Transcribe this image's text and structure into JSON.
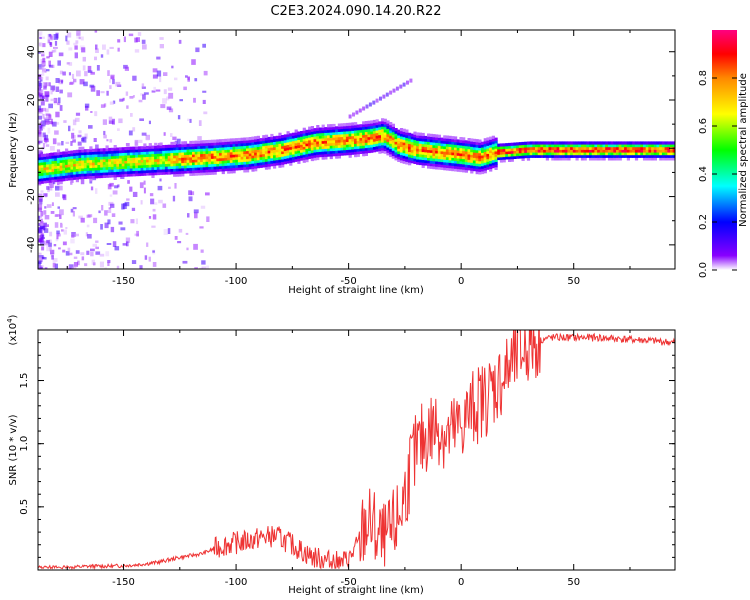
{
  "title": "C2E3.2024.090.14.20.R22",
  "chart_data": [
    {
      "type": "heatmap",
      "title": "C2E3.2024.090.14.20.R22",
      "xlabel": "Height of straight line (km)",
      "ylabel": "Frequency (Hz)",
      "xlim": [
        -188,
        95
      ],
      "ylim": [
        -50,
        49
      ],
      "xticks": [
        -150,
        -100,
        -50,
        0,
        50
      ],
      "xtick_labels": [
        "-150",
        "-100",
        "-50",
        "0",
        "50"
      ],
      "yticks": [
        -40,
        -20,
        0,
        20,
        40
      ],
      "ytick_labels": [
        "-40",
        "-20",
        "0",
        "20",
        "40"
      ],
      "ridge": {
        "description": "dominant frequency vs height",
        "x": [
          -188,
          -170,
          -150,
          -130,
          -110,
          -95,
          -80,
          -65,
          -50,
          -40,
          -35,
          -28,
          -20,
          -10,
          0,
          8,
          15,
          30,
          60,
          95
        ],
        "y": [
          -8,
          -6,
          -5,
          -4,
          -3,
          -2,
          0,
          3,
          4,
          5,
          6,
          2,
          0,
          -1,
          -2,
          -3,
          -1,
          0,
          0,
          0
        ]
      },
      "colorbar": {
        "label": "Normalized spectral amplitude",
        "range": [
          0,
          1
        ],
        "ticks": [
          0,
          0.2,
          0.4,
          0.6,
          0.8
        ],
        "tick_labels": [
          "0.0",
          "0.2",
          "0.4",
          "0.6",
          "0.8"
        ],
        "colors": [
          "#ffffff",
          "#8800ff",
          "#0000ff",
          "#00ffff",
          "#00ff00",
          "#ffff00",
          "#ff8800",
          "#ff0000",
          "#ff0080"
        ]
      }
    },
    {
      "type": "line",
      "xlabel": "Height of straight line (km)",
      "ylabel": "SNR (10 * v/v)",
      "scale_label": "(x10",
      "scale_exponent": "4",
      "xlim": [
        -188,
        95
      ],
      "ylim": [
        0,
        1.9
      ],
      "xticks": [
        -150,
        -100,
        -50,
        0,
        50
      ],
      "xtick_labels": [
        "-150",
        "-100",
        "-50",
        "0",
        "50"
      ],
      "yticks": [
        0.5,
        1.0,
        1.5
      ],
      "ytick_labels": [
        "0.5",
        "1.0",
        "1.5"
      ],
      "color": "#ee3333",
      "series": [
        {
          "name": "SNR",
          "x": [
            -188,
            -175,
            -165,
            -155,
            -145,
            -135,
            -125,
            -115,
            -105,
            -95,
            -88,
            -82,
            -75,
            -68,
            -62,
            -55,
            -50,
            -46,
            -42,
            -38,
            -35,
            -32,
            -28,
            -25,
            -22,
            -18,
            -14,
            -10,
            -6,
            -2,
            2,
            6,
            10,
            15,
            20,
            25,
            30,
            35,
            40,
            50,
            60,
            70,
            80,
            95
          ],
          "y": [
            0.02,
            0.02,
            0.03,
            0.03,
            0.04,
            0.06,
            0.1,
            0.13,
            0.2,
            0.23,
            0.26,
            0.27,
            0.2,
            0.12,
            0.08,
            0.06,
            0.08,
            0.2,
            0.38,
            0.3,
            0.2,
            0.25,
            0.4,
            0.6,
            0.85,
            1.0,
            1.1,
            1.15,
            1.05,
            1.1,
            1.2,
            1.3,
            1.35,
            1.45,
            1.55,
            1.7,
            1.78,
            1.82,
            1.84,
            1.84,
            1.84,
            1.83,
            1.82,
            1.8
          ]
        }
      ]
    }
  ]
}
